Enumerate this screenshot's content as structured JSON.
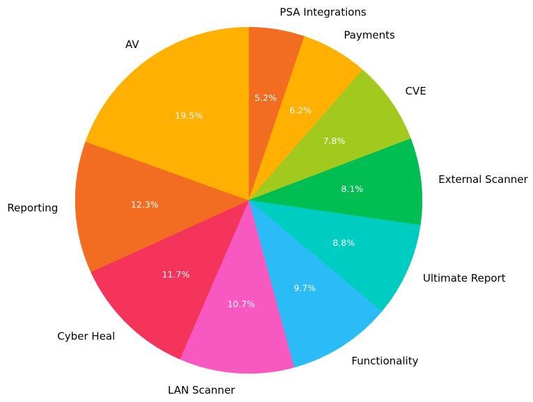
{
  "chart_data": {
    "type": "pie",
    "title": "",
    "start_angle_deg": 90,
    "direction": "clockwise",
    "slices": [
      {
        "label": "PSA Integrations",
        "value": 5.2,
        "pct_label": "5.2%",
        "color": "#F26C21"
      },
      {
        "label": "Payments",
        "value": 6.2,
        "pct_label": "6.2%",
        "color": "#FFB000"
      },
      {
        "label": "CVE",
        "value": 7.8,
        "pct_label": "7.8%",
        "color": "#A2C91E"
      },
      {
        "label": "External Scanner",
        "value": 8.1,
        "pct_label": "8.1%",
        "color": "#00BE52"
      },
      {
        "label": "Ultimate Report",
        "value": 8.8,
        "pct_label": "8.8%",
        "color": "#00CDC2"
      },
      {
        "label": "Functionality",
        "value": 9.7,
        "pct_label": "9.7%",
        "color": "#2BBCF8"
      },
      {
        "label": "LAN Scanner",
        "value": 10.7,
        "pct_label": "10.7%",
        "color": "#F759C1"
      },
      {
        "label": "Cyber Heal",
        "value": 11.7,
        "pct_label": "11.7%",
        "color": "#F4345A"
      },
      {
        "label": "Reporting",
        "value": 12.3,
        "pct_label": "12.3%",
        "color": "#F26C21"
      },
      {
        "label": "AV",
        "value": 19.5,
        "pct_label": "19.5%",
        "color": "#FFB000"
      }
    ]
  }
}
